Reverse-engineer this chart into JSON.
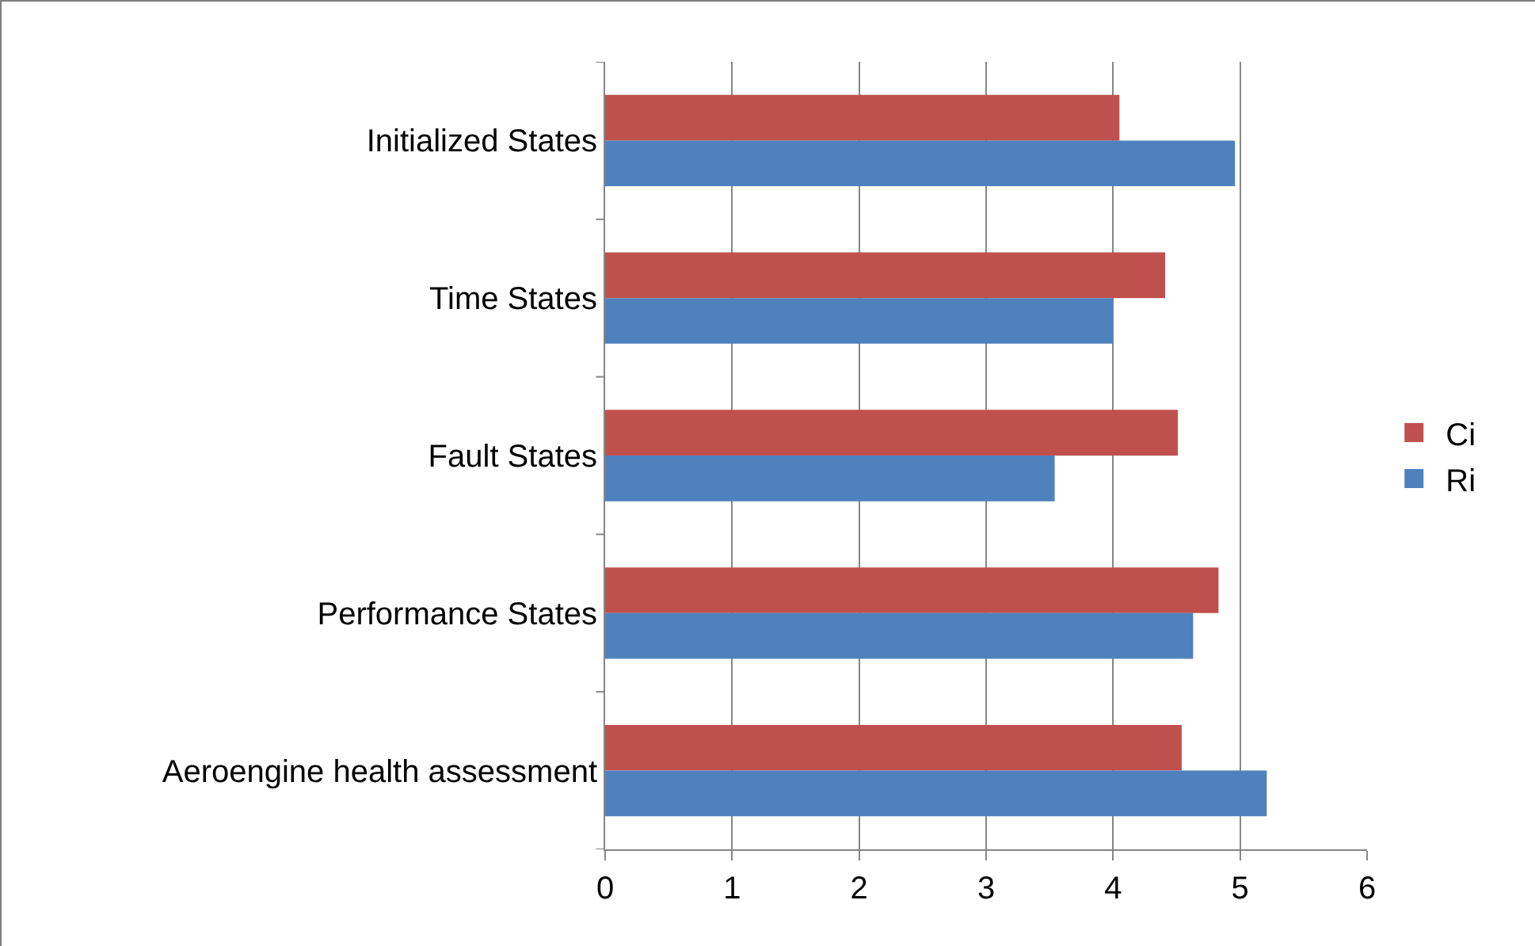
{
  "chart_data": {
    "type": "bar",
    "orientation": "horizontal",
    "categories": [
      "Initialized States",
      "Time States",
      "Fault States",
      "Performance States",
      "Aeroengine health assessment"
    ],
    "series": [
      {
        "name": "Ci",
        "color": "#c0504d",
        "values": [
          4.05,
          4.41,
          4.51,
          4.83,
          4.54
        ]
      },
      {
        "name": "Ri",
        "color": "#4f81bd",
        "values": [
          4.96,
          4.0,
          3.54,
          4.63,
          5.21
        ]
      }
    ],
    "xlim": [
      0,
      6
    ],
    "xticks": [
      0,
      1,
      2,
      3,
      4,
      5,
      6
    ],
    "grid": "x",
    "legend": "right"
  }
}
